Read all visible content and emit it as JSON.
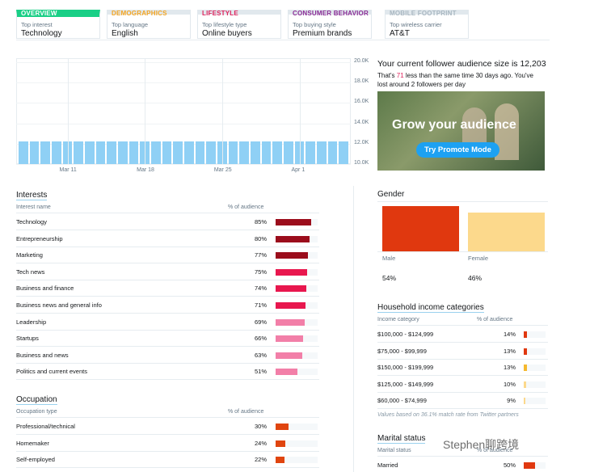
{
  "tabs": [
    {
      "title": "OVERVIEW",
      "subtitle": "Top interest",
      "value": "Technology",
      "color": "#19cf86"
    },
    {
      "title": "DEMOGRAPHICS",
      "subtitle": "Top language",
      "value": "English",
      "color": "#f5a623"
    },
    {
      "title": "LIFESTYLE",
      "subtitle": "Top lifestyle type",
      "value": "Online buyers",
      "color": "#e0245e"
    },
    {
      "title": "CONSUMER BEHAVIOR",
      "subtitle": "Top buying style",
      "value": "Premium brands",
      "color": "#8b2c96"
    },
    {
      "title": "MOBILE FOOTPRINT",
      "subtitle": "Top wireless carrier",
      "value": "AT&T",
      "color": "#aab8c2"
    }
  ],
  "followers_chart": {
    "type": "bar",
    "color": "#8fd0f5",
    "categories": [
      null,
      null,
      null,
      null,
      "Mar 11",
      null,
      null,
      null,
      null,
      null,
      null,
      "Mar 18",
      null,
      null,
      null,
      null,
      null,
      null,
      "Mar 25",
      null,
      null,
      null,
      null,
      null,
      null,
      "Apr 1",
      null,
      null,
      null,
      null
    ],
    "values": [
      12250,
      12250,
      12240,
      12240,
      12240,
      12240,
      12230,
      12230,
      12230,
      12230,
      12230,
      12230,
      12220,
      12220,
      12220,
      12220,
      12220,
      12220,
      12220,
      12210,
      12210,
      12210,
      12210,
      12210,
      12210,
      12210,
      12210,
      12200,
      12200,
      12200
    ],
    "ylim": [
      10000,
      20000
    ],
    "yticks": [
      {
        "value": 10000,
        "label": "10.0K"
      },
      {
        "value": 12000,
        "label": "12.0K"
      },
      {
        "value": 14000,
        "label": "14.0K"
      },
      {
        "value": 16000,
        "label": "16.0K"
      },
      {
        "value": 18000,
        "label": "18.0K"
      },
      {
        "value": 20000,
        "label": "20.0K"
      }
    ]
  },
  "audience": {
    "headline": "Your current follower audience size is 12,203",
    "detail_before": "That's ",
    "detail_number": "71",
    "detail_after": " less than the same time 30 days ago. You've lost around 2 followers per day"
  },
  "promo": {
    "title": "Grow your audience",
    "button": "Try Promote Mode"
  },
  "interests": {
    "title": "Interests",
    "column_label": "Interest name",
    "column_value": "% of audience",
    "categories": [
      "Technology",
      "Entrepreneurship",
      "Marketing",
      "Tech news",
      "Business and finance",
      "Business news and general info",
      "Leadership",
      "Startups",
      "Business and news",
      "Politics and current events"
    ],
    "values": [
      85,
      80,
      77,
      75,
      74,
      71,
      69,
      66,
      63,
      51
    ],
    "value_labels": [
      "85%",
      "80%",
      "77%",
      "75%",
      "74%",
      "71%",
      "69%",
      "66%",
      "63%",
      "51%"
    ],
    "colors": [
      "#9b0d1c",
      "#9b0d1c",
      "#9b0d1c",
      "#e8174e",
      "#e8174e",
      "#e8174e",
      "#f27fa8",
      "#f27fa8",
      "#f27fa8",
      "#f27fa8"
    ]
  },
  "occupation": {
    "title": "Occupation",
    "column_label": "Occupation type",
    "column_value": "% of audience",
    "categories": [
      "Professional/technical",
      "Homemaker",
      "Self-employed"
    ],
    "values": [
      30,
      24,
      22
    ],
    "value_labels": [
      "30%",
      "24%",
      "22%"
    ],
    "colors": [
      "#e0450f",
      "#e0450f",
      "#e0450f"
    ]
  },
  "gender": {
    "title": "Gender",
    "categories": [
      "Male",
      "Female"
    ],
    "values": [
      54,
      46
    ],
    "value_labels": [
      "54%",
      "46%"
    ],
    "colors": [
      "#e0380f",
      "#fcd98c"
    ]
  },
  "household_income": {
    "title": "Household income categories",
    "column_label": "Income category",
    "column_value": "% of audience",
    "categories": [
      "$100,000 - $124,999",
      "$75,000 - $99,999",
      "$150,000 - $199,999",
      "$125,000 - $149,999",
      "$60,000 - $74,999"
    ],
    "values": [
      14,
      13,
      13,
      10,
      9
    ],
    "value_labels": [
      "14%",
      "13%",
      "13%",
      "10%",
      "9%"
    ],
    "colors": [
      "#e0380f",
      "#e0380f",
      "#f5b82e",
      "#fcd98c",
      "#fcd98c"
    ],
    "note": "Values based on 36.1% match rate from Twitter partners"
  },
  "marital_status": {
    "title": "Marital status",
    "column_label": "Marital status",
    "column_value": "% of audience",
    "categories": [
      "Married"
    ],
    "values": [
      50
    ],
    "value_labels": [
      "50%"
    ],
    "colors": [
      "#e0380f"
    ]
  },
  "watermark": "Stephen聊跨境"
}
